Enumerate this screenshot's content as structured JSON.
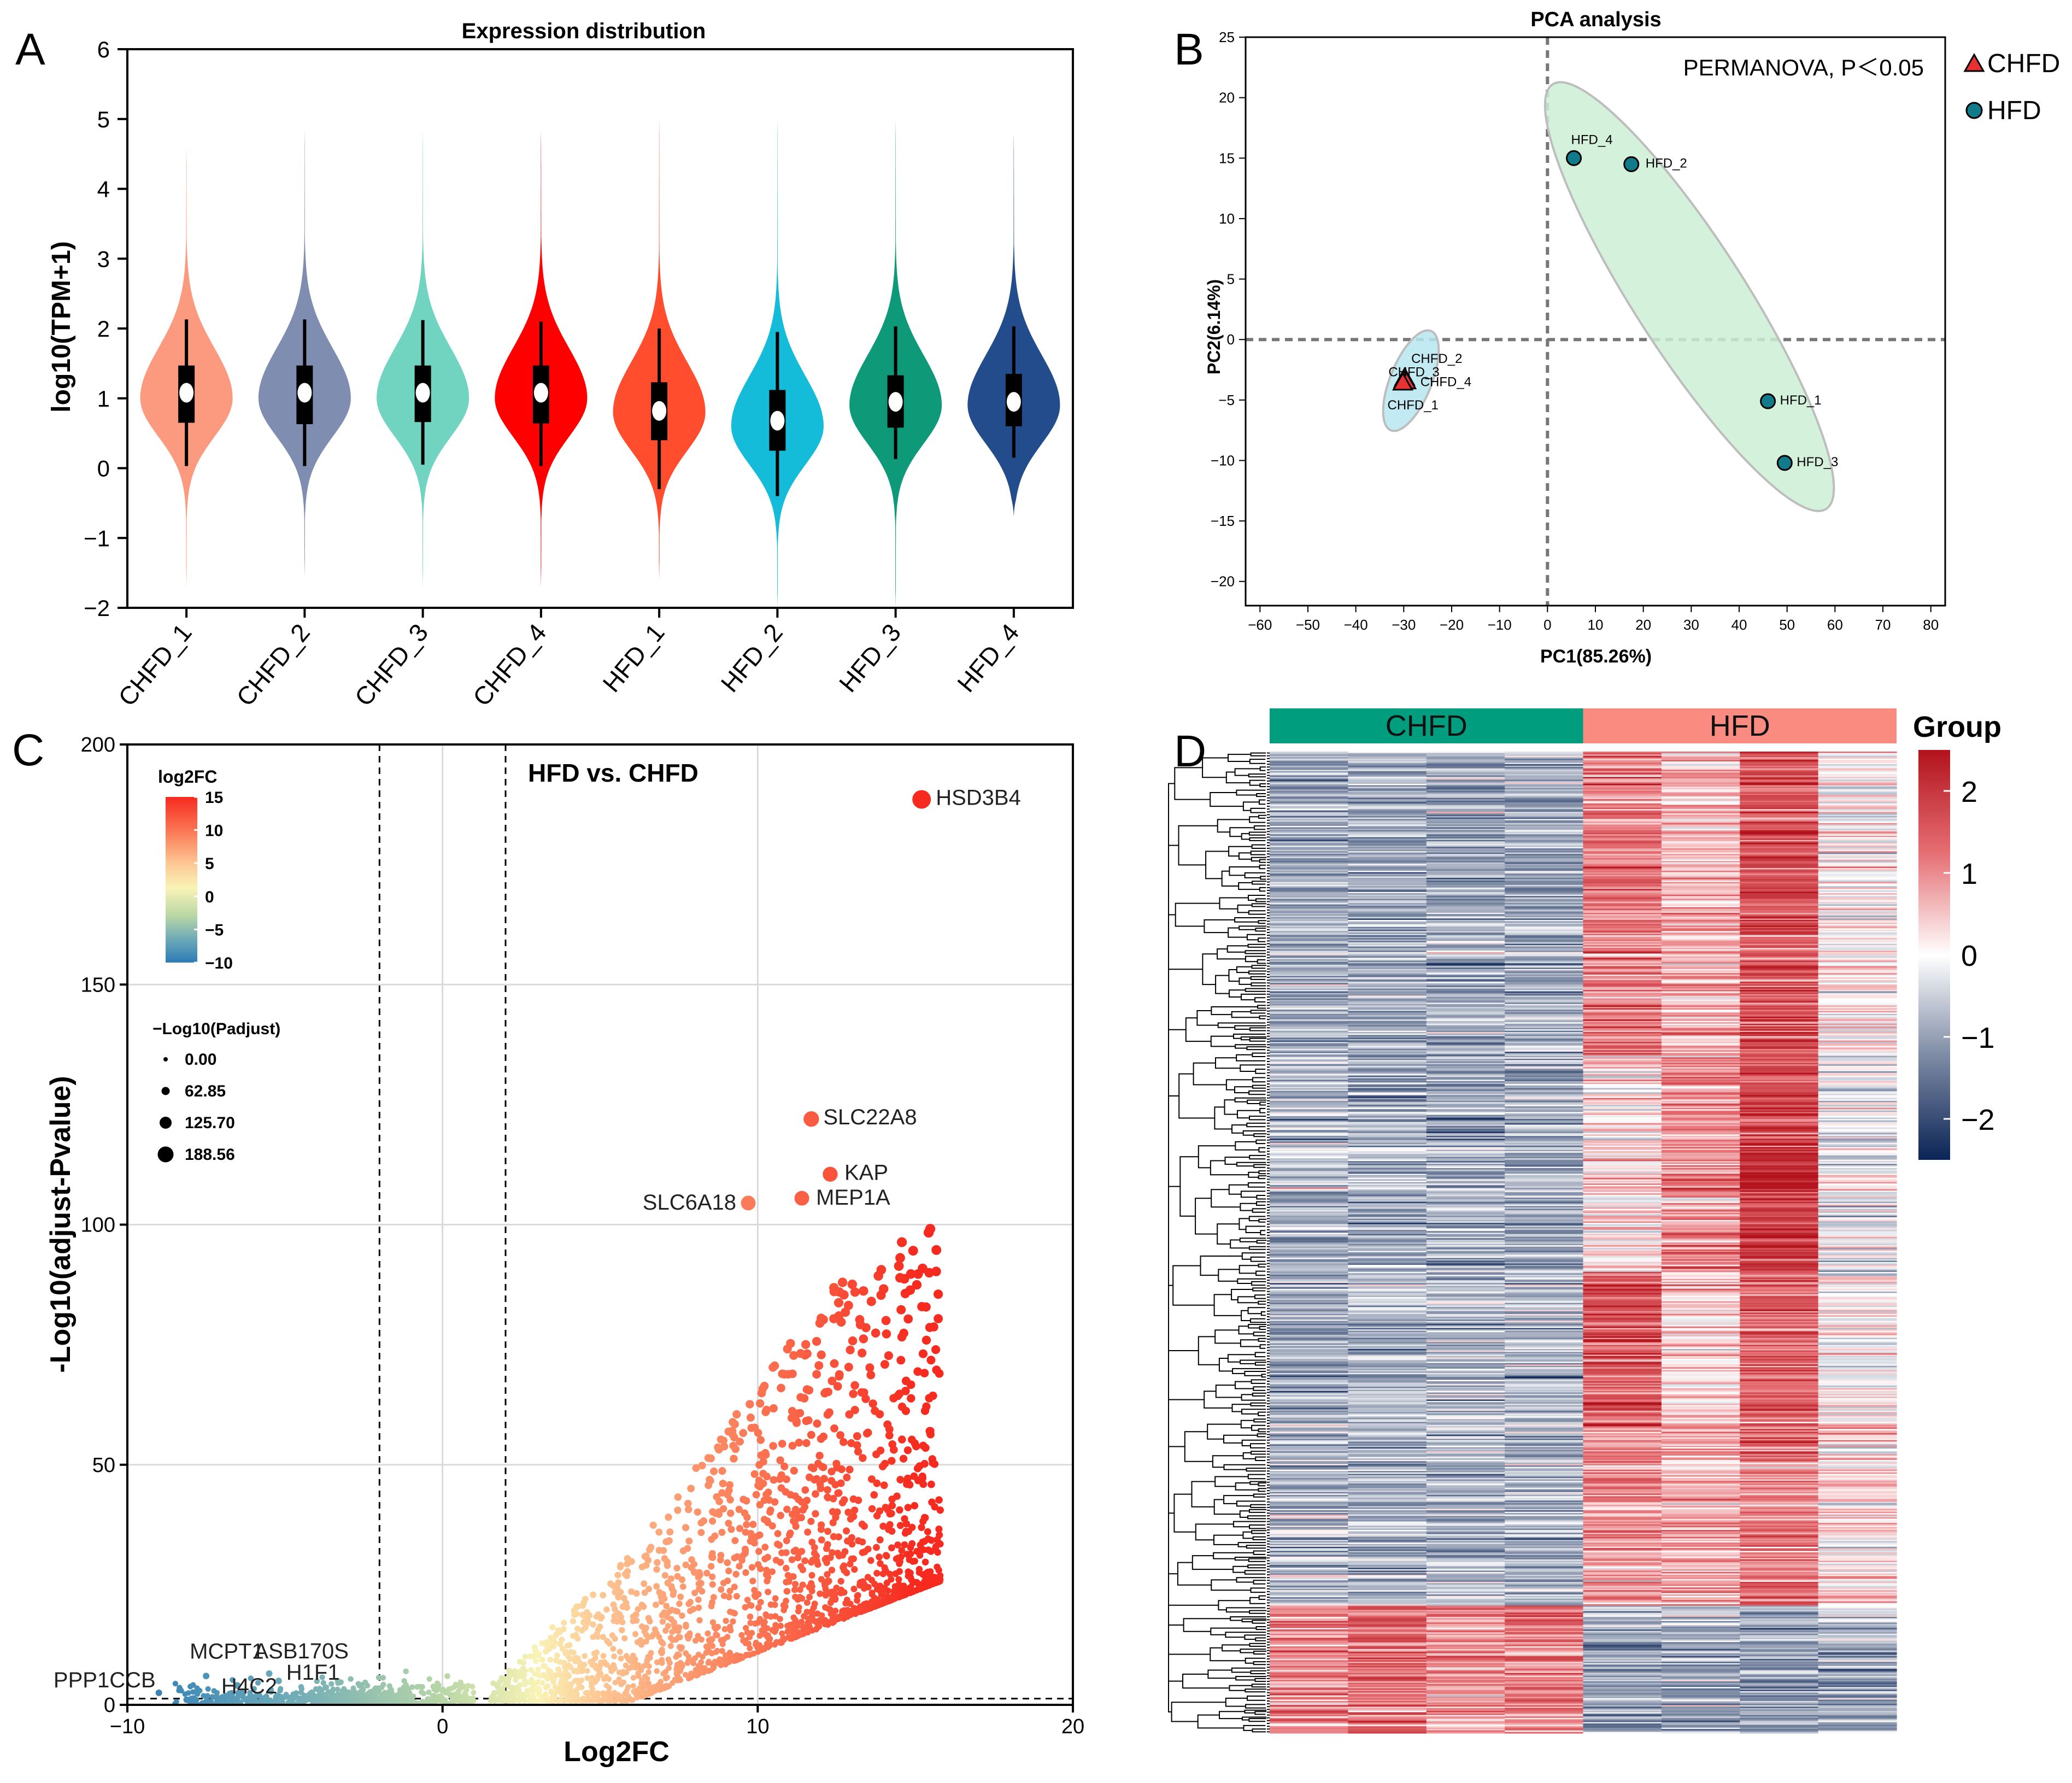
{
  "panels": {
    "A": {
      "letter": "A",
      "chart_data": {
        "type": "violin",
        "title": "Expression distribution",
        "ylabel": "log10(TPM+1)",
        "xlabel": "",
        "ylim": [
          -2,
          6
        ],
        "yticks": [
          -2,
          -1,
          0,
          1,
          2,
          3,
          4,
          5,
          6
        ],
        "samples": [
          {
            "name": "CHFD_1",
            "color": "#FB9A7E",
            "median": 1.08,
            "q1": 0.65,
            "q3": 1.47,
            "wlo": 0.03,
            "whi": 2.13,
            "min": -1.7,
            "max": 4.6,
            "mode": 1.0,
            "width": 0.85
          },
          {
            "name": "CHFD_2",
            "color": "#7E8DB0",
            "median": 1.08,
            "q1": 0.63,
            "q3": 1.47,
            "wlo": 0.03,
            "whi": 2.13,
            "min": -1.55,
            "max": 4.85,
            "mode": 1.0,
            "width": 0.85
          },
          {
            "name": "CHFD_3",
            "color": "#70D4C1",
            "median": 1.08,
            "q1": 0.66,
            "q3": 1.47,
            "wlo": 0.05,
            "whi": 2.12,
            "min": -1.7,
            "max": 4.85,
            "mode": 1.0,
            "width": 0.85
          },
          {
            "name": "CHFD_4",
            "color": "#FF0000",
            "median": 1.08,
            "q1": 0.64,
            "q3": 1.47,
            "wlo": 0.03,
            "whi": 2.1,
            "min": -1.7,
            "max": 4.85,
            "mode": 1.0,
            "width": 0.85
          },
          {
            "name": "HFD_1",
            "color": "#FF4D2E",
            "median": 0.82,
            "q1": 0.4,
            "q3": 1.23,
            "wlo": -0.3,
            "whi": 2.0,
            "min": -1.6,
            "max": 5.0,
            "mode": 0.8,
            "width": 0.85
          },
          {
            "name": "HFD_2",
            "color": "#14BCD9",
            "median": 0.68,
            "q1": 0.25,
            "q3": 1.12,
            "wlo": -0.4,
            "whi": 1.95,
            "min": -2.0,
            "max": 5.0,
            "mode": 0.6,
            "width": 0.85
          },
          {
            "name": "HFD_3",
            "color": "#0E9A78",
            "median": 0.95,
            "q1": 0.58,
            "q3": 1.33,
            "wlo": 0.13,
            "whi": 2.03,
            "min": -2.0,
            "max": 5.0,
            "mode": 0.9,
            "width": 0.85
          },
          {
            "name": "HFD_4",
            "color": "#224C8C",
            "median": 0.95,
            "q1": 0.6,
            "q3": 1.35,
            "wlo": 0.15,
            "whi": 2.03,
            "min": -0.7,
            "max": 4.8,
            "mode": 0.9,
            "width": 0.85
          }
        ]
      }
    },
    "B": {
      "letter": "B",
      "chart_data": {
        "type": "scatter",
        "title": "PCA analysis",
        "xlabel": "PC1(85.26%)",
        "ylabel": "PC2(6.14%)",
        "xlim": [
          -63,
          83
        ],
        "ylim": [
          -22,
          25
        ],
        "xticks": [
          -60,
          -50,
          -40,
          -30,
          -20,
          -10,
          0,
          10,
          20,
          30,
          40,
          50,
          60,
          70,
          80
        ],
        "yticks": [
          -20,
          -15,
          -10,
          -5,
          0,
          5,
          10,
          15,
          20,
          25
        ],
        "annotation": "PERMANOVA, P＜0.05",
        "legend": [
          {
            "label": "CHFD",
            "shape": "triangle",
            "color": "#E83232"
          },
          {
            "label": "HFD",
            "shape": "circle",
            "color": "#117A8B"
          }
        ],
        "series": [
          {
            "name": "CHFD",
            "color": "#E83232",
            "ellipse_color": "#B7E6F0",
            "points": [
              {
                "label": "CHFD_2",
                "x": -29.8,
                "y": -3.2
              },
              {
                "label": "CHFD_3",
                "x": -30.0,
                "y": -3.4
              },
              {
                "label": "CHFD_4",
                "x": -29.5,
                "y": -3.5
              },
              {
                "label": "CHFD_1",
                "x": -30.2,
                "y": -3.6
              }
            ]
          },
          {
            "name": "HFD",
            "color": "#117A8B",
            "ellipse_color": "#CDEFD5",
            "points": [
              {
                "label": "HFD_4",
                "x": 5.5,
                "y": 15.0
              },
              {
                "label": "HFD_2",
                "x": 17.5,
                "y": 14.5
              },
              {
                "label": "HFD_1",
                "x": 46.0,
                "y": -5.1
              },
              {
                "label": "HFD_3",
                "x": 49.5,
                "y": -10.2
              }
            ]
          }
        ]
      }
    },
    "C": {
      "letter": "C",
      "chart_data": {
        "type": "scatter",
        "title": "HFD vs. CHFD",
        "xlabel": "Log2FC",
        "ylabel": "-Log10(adjust-Pvalue)",
        "xlim": [
          -10,
          20
        ],
        "ylim": [
          0,
          200
        ],
        "xticks": [
          -10,
          0,
          10,
          20
        ],
        "yticks": [
          0,
          50,
          100,
          150,
          200
        ],
        "thresholds": {
          "log2fc": [
            -2,
            2
          ],
          "padj_line": 1.3
        },
        "colorbar": {
          "title": "log2FC",
          "ticks": [
            "15",
            "10",
            "5",
            "0",
            "−5",
            "−10"
          ],
          "range": [
            -10,
            15
          ]
        },
        "size_legend": {
          "title": "−Log10(Padjust)",
          "items": [
            "0.00",
            "62.85",
            "125.70",
            "188.56"
          ]
        },
        "labeled_genes": [
          {
            "name": "HSD3B4",
            "x": 15.2,
            "y": 188.56
          },
          {
            "name": "SLC22A8",
            "x": 11.7,
            "y": 122.0
          },
          {
            "name": "KAP",
            "x": 12.3,
            "y": 110.5
          },
          {
            "name": "MEP1A",
            "x": 11.4,
            "y": 105.5
          },
          {
            "name": "SLC6A18",
            "x": 9.7,
            "y": 104.5
          },
          {
            "name": "PPP1CCB",
            "x": -9.0,
            "y": 2.5
          },
          {
            "name": "MCPT1",
            "x": -7.5,
            "y": 6.0
          },
          {
            "name": "H4C2",
            "x": -6.5,
            "y": 4.0
          },
          {
            "name": "ASB170S",
            "x": -5.5,
            "y": 6.5
          },
          {
            "name": "H1F1",
            "x": -5.2,
            "y": 5.0
          }
        ],
        "scatter_cloud": {
          "n_points": 2600,
          "description": "upregulated genes forming a fan from log2FC 2 to 16"
        }
      }
    },
    "D": {
      "letter": "D",
      "chart_data": {
        "type": "heatmap",
        "groups": [
          {
            "label": "CHFD",
            "color": "#009E7E",
            "columns": 4
          },
          {
            "label": "HFD",
            "color": "#F98B80",
            "columns": 4
          }
        ],
        "legend_title": "Group",
        "colorbar": {
          "ticks": [
            "2",
            "1",
            "0",
            "−1",
            "−2"
          ],
          "range": [
            -2.5,
            2.5
          ]
        },
        "n_rows": 700,
        "n_cols": 8
      }
    }
  }
}
